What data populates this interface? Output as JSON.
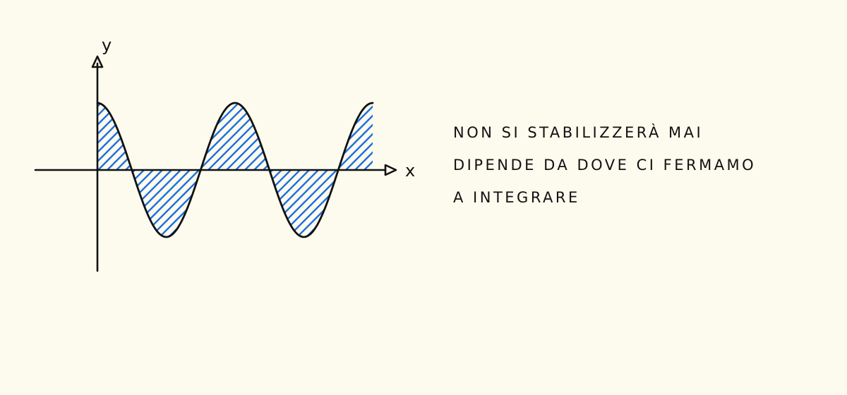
{
  "diagram": {
    "x_axis_label": "x",
    "y_axis_label": "y",
    "curve": "oscillating wave shaded between curve and x-axis",
    "colors": {
      "background": "#fdfbee",
      "ink": "#111111",
      "hatch": "#1f6fe0"
    }
  },
  "note": {
    "lines": [
      "NON SI STABILIZZERÀ MAI",
      "DIPENDE DA DOVE CI FERMAMO",
      "A INTEGRARE"
    ]
  }
}
